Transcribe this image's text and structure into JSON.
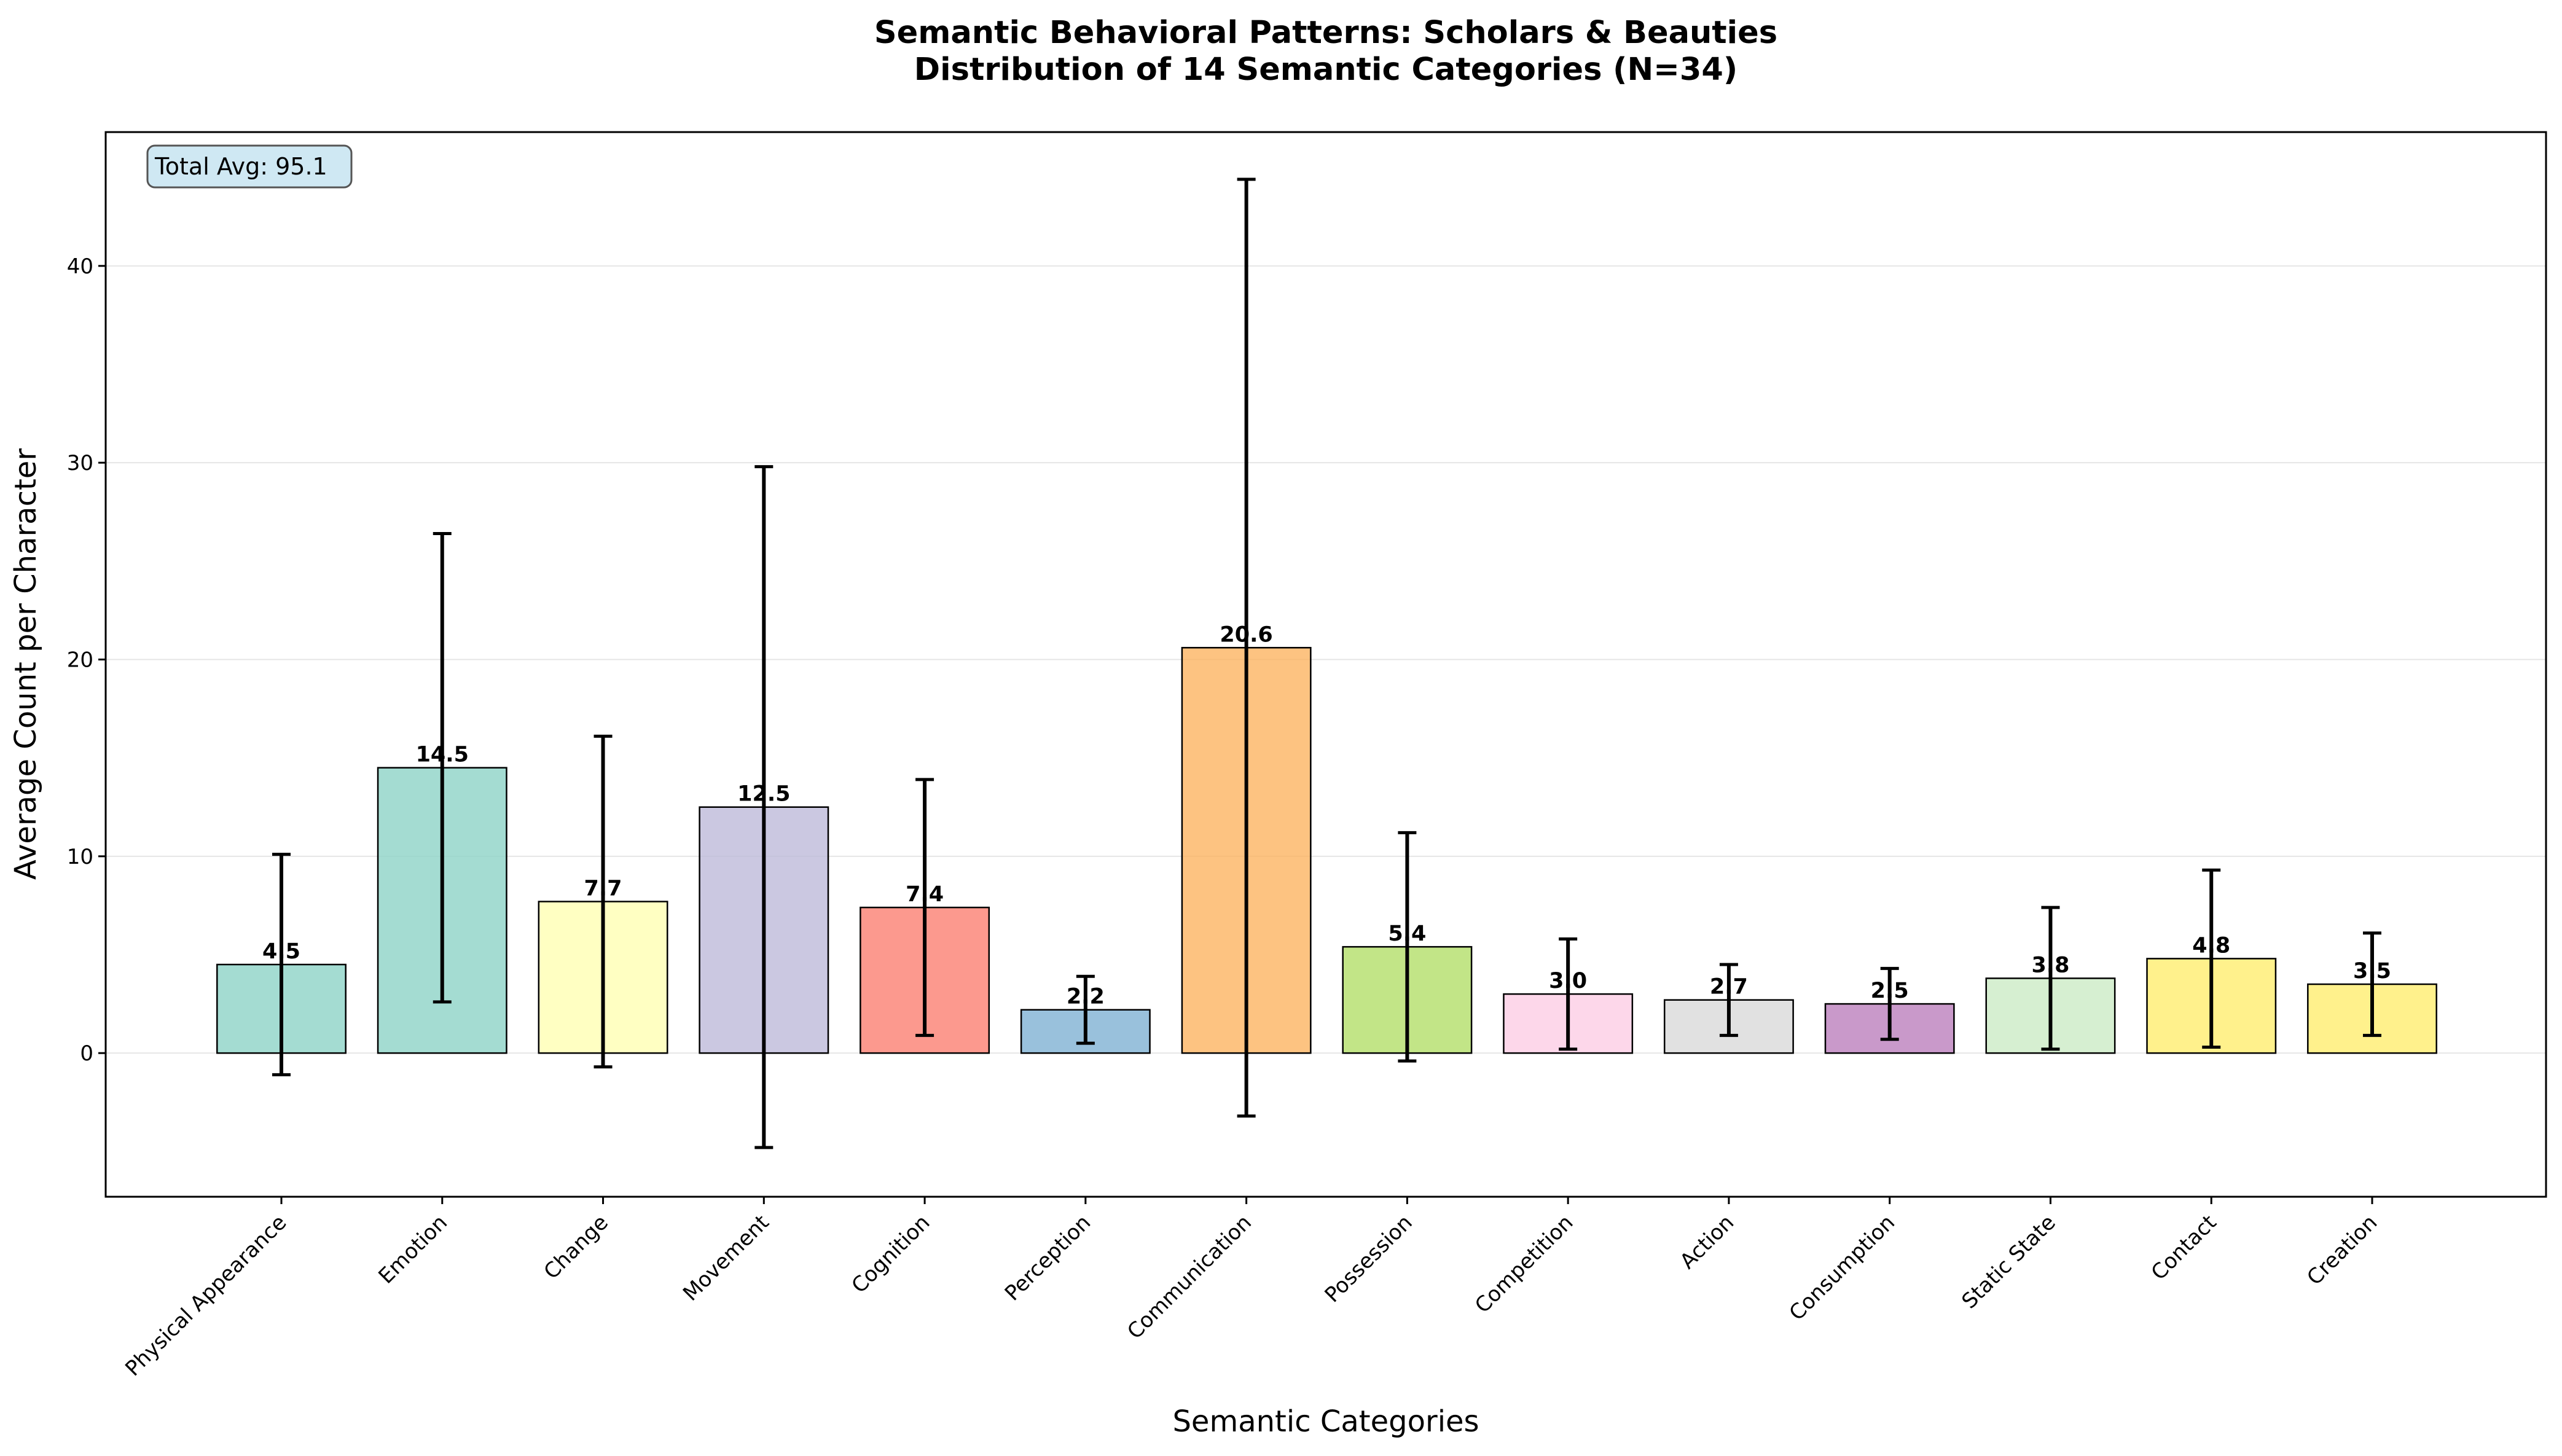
{
  "chart_data": {
    "type": "bar",
    "title": "Semantic Behavioral Patterns: Scholars & Beauties",
    "subtitle": "Distribution of 14 Semantic Categories (N=34)",
    "xlabel": "Semantic Categories",
    "ylabel": "Average Count per Character",
    "annotation": "Total Avg: 95.1",
    "categories": [
      "Physical Appearance",
      "Emotion",
      "Change",
      "Movement",
      "Cognition",
      "Perception",
      "Communication",
      "Possession",
      "Competition",
      "Action",
      "Consumption",
      "Static State",
      "Contact",
      "Creation"
    ],
    "values": [
      4.5,
      14.5,
      7.7,
      12.5,
      7.4,
      2.2,
      20.6,
      5.4,
      3.0,
      2.7,
      2.5,
      3.8,
      4.8,
      3.5
    ],
    "value_labels": [
      "4.5",
      "14.5",
      "7.7",
      "12.5",
      "7.4",
      "2.2",
      "20.6",
      "5.4",
      "3.0",
      "2.7",
      "2.5",
      "3.8",
      "4.8",
      "3.5"
    ],
    "errors": [
      5.6,
      11.9,
      8.4,
      17.3,
      6.5,
      1.7,
      23.8,
      5.8,
      2.8,
      1.8,
      1.8,
      3.6,
      4.5,
      2.6
    ],
    "colors": [
      "#8dd3c7",
      "#8dd3c7",
      "#ffffb3",
      "#bebada",
      "#fb8072",
      "#80b1d3",
      "#fdb462",
      "#b3de69",
      "#fccde5",
      "#d9d9d9",
      "#bc80bd",
      "#ccebc5",
      "#ffed6f",
      "#ffed6f"
    ],
    "ylim": [
      -7.3,
      46.8
    ],
    "yticks": [
      0,
      10,
      20,
      30,
      40
    ],
    "grid": "y",
    "legend": "none"
  }
}
